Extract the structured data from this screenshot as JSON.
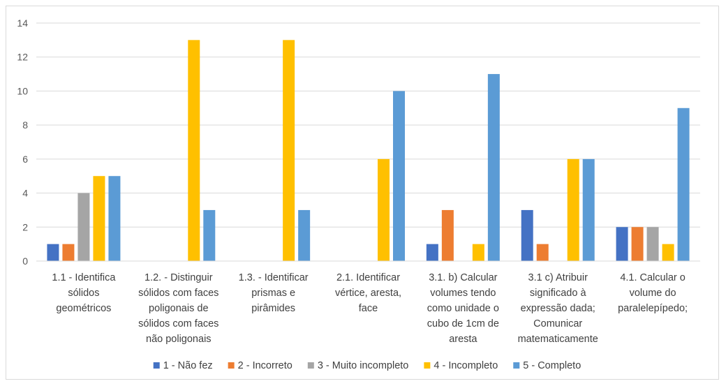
{
  "chart_data": {
    "type": "bar",
    "title": "",
    "xlabel": "",
    "ylabel": "",
    "ylim": [
      0,
      14
    ],
    "yticks": [
      0,
      2,
      4,
      6,
      8,
      10,
      12,
      14
    ],
    "grid": true,
    "legend_position": "bottom",
    "categories": [
      [
        "1.1 - Identifica",
        "sólidos",
        "geométricos"
      ],
      [
        "1.2. - Distinguir",
        "sólidos com faces",
        "poligonais de",
        "sólidos com faces",
        "não poligonais"
      ],
      [
        "1.3. - Identificar",
        "prismas e",
        "pirâmides"
      ],
      [
        "2.1. Identificar",
        "vértice, aresta,",
        "face"
      ],
      [
        "3.1. b) Calcular",
        "volumes tendo",
        "como unidade o",
        "cubo de 1cm de",
        "aresta"
      ],
      [
        "3.1 c) Atribuir",
        "significado à",
        "expressão dada;",
        "Comunicar",
        "matematicamente"
      ],
      [
        "4.1. Calcular o",
        "volume do",
        "paralelepípedo;"
      ]
    ],
    "series": [
      {
        "name": "1 - Não fez",
        "color": "#4472c4",
        "values": [
          1,
          0,
          0,
          0,
          1,
          3,
          2
        ]
      },
      {
        "name": "2 - Incorreto",
        "color": "#ed7d31",
        "values": [
          1,
          0,
          0,
          0,
          3,
          1,
          2
        ]
      },
      {
        "name": "3 - Muito incompleto",
        "color": "#a5a5a5",
        "values": [
          4,
          0,
          0,
          0,
          0,
          0,
          2
        ]
      },
      {
        "name": "4 - Incompleto",
        "color": "#ffc000",
        "values": [
          5,
          13,
          13,
          6,
          1,
          6,
          1
        ]
      },
      {
        "name": "5 - Completo",
        "color": "#5b9bd5",
        "values": [
          5,
          3,
          3,
          10,
          11,
          6,
          9
        ]
      }
    ]
  }
}
